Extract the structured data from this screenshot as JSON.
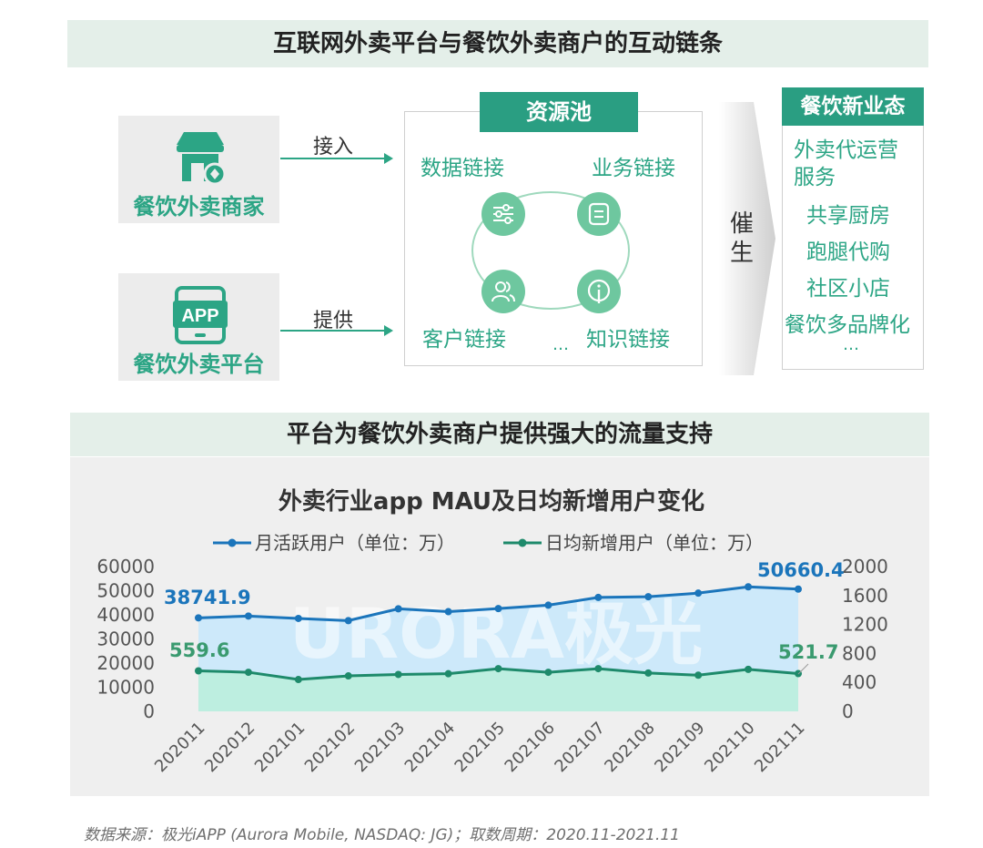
{
  "top_section": {
    "title": "互联网外卖平台与餐饮外卖商户的互动链条",
    "merchant_label": "餐饮外卖商家",
    "platform_label": "餐饮外卖平台",
    "app_badge": "APP",
    "connect_label": "接入",
    "provide_label": "提供",
    "resource_pool": {
      "title": "资源池",
      "items": [
        "数据链接",
        "业务链接",
        "客户链接",
        "知识链接"
      ],
      "ellipsis": "…"
    },
    "catalyze_label": "催生",
    "new_formats": {
      "title": "餐饮新业态",
      "items": [
        "外卖代运营服务",
        "共享厨房",
        "跑腿代购",
        "社区小店",
        "餐饮多品牌化"
      ],
      "ellipsis": "…"
    }
  },
  "mid_section": {
    "title": "平台为餐饮外卖商户提供强大的流量支持"
  },
  "chart_data": {
    "type": "line",
    "title": "外卖行业app MAU及日均新增用户变化",
    "categories": [
      "202011",
      "202012",
      "202101",
      "202102",
      "202103",
      "202104",
      "202105",
      "202106",
      "202107",
      "202108",
      "202109",
      "202110",
      "202111"
    ],
    "series": [
      {
        "name": "月活跃用户（单位：万）",
        "axis": "left",
        "color": "#1b75bb",
        "values": [
          38741.9,
          39500,
          38500,
          37600,
          42500,
          41300,
          42600,
          44000,
          47200,
          47500,
          49000,
          51600,
          50660.4
        ]
      },
      {
        "name": "日均新增用户（单位：万）",
        "axis": "right",
        "color": "#1e8a6b",
        "values": [
          559.6,
          540,
          440,
          490,
          510,
          520,
          590,
          540,
          590,
          530,
          500,
          580,
          521.7
        ]
      }
    ],
    "y_left": {
      "min": 0,
      "max": 60000,
      "ticks": [
        0,
        10000,
        20000,
        30000,
        40000,
        50000,
        60000
      ]
    },
    "y_right": {
      "min": 0,
      "max": 2000,
      "ticks": [
        0,
        400,
        800,
        1200,
        1600,
        2000
      ]
    },
    "labels": {
      "mau_first": "38741.9",
      "mau_last": "50660.4",
      "daily_first": "559.6",
      "daily_last": "521.7"
    },
    "legend_position": "top",
    "grid": false
  },
  "source_note": "数据来源：极光iAPP (Aurora Mobile, NASDAQ: JG)；取数周期：2020.11-2021.11",
  "watermark": "URORA极光",
  "colors": {
    "accent": "#2a9e82",
    "mau": "#1b75bb",
    "daily": "#1e8a6b"
  }
}
